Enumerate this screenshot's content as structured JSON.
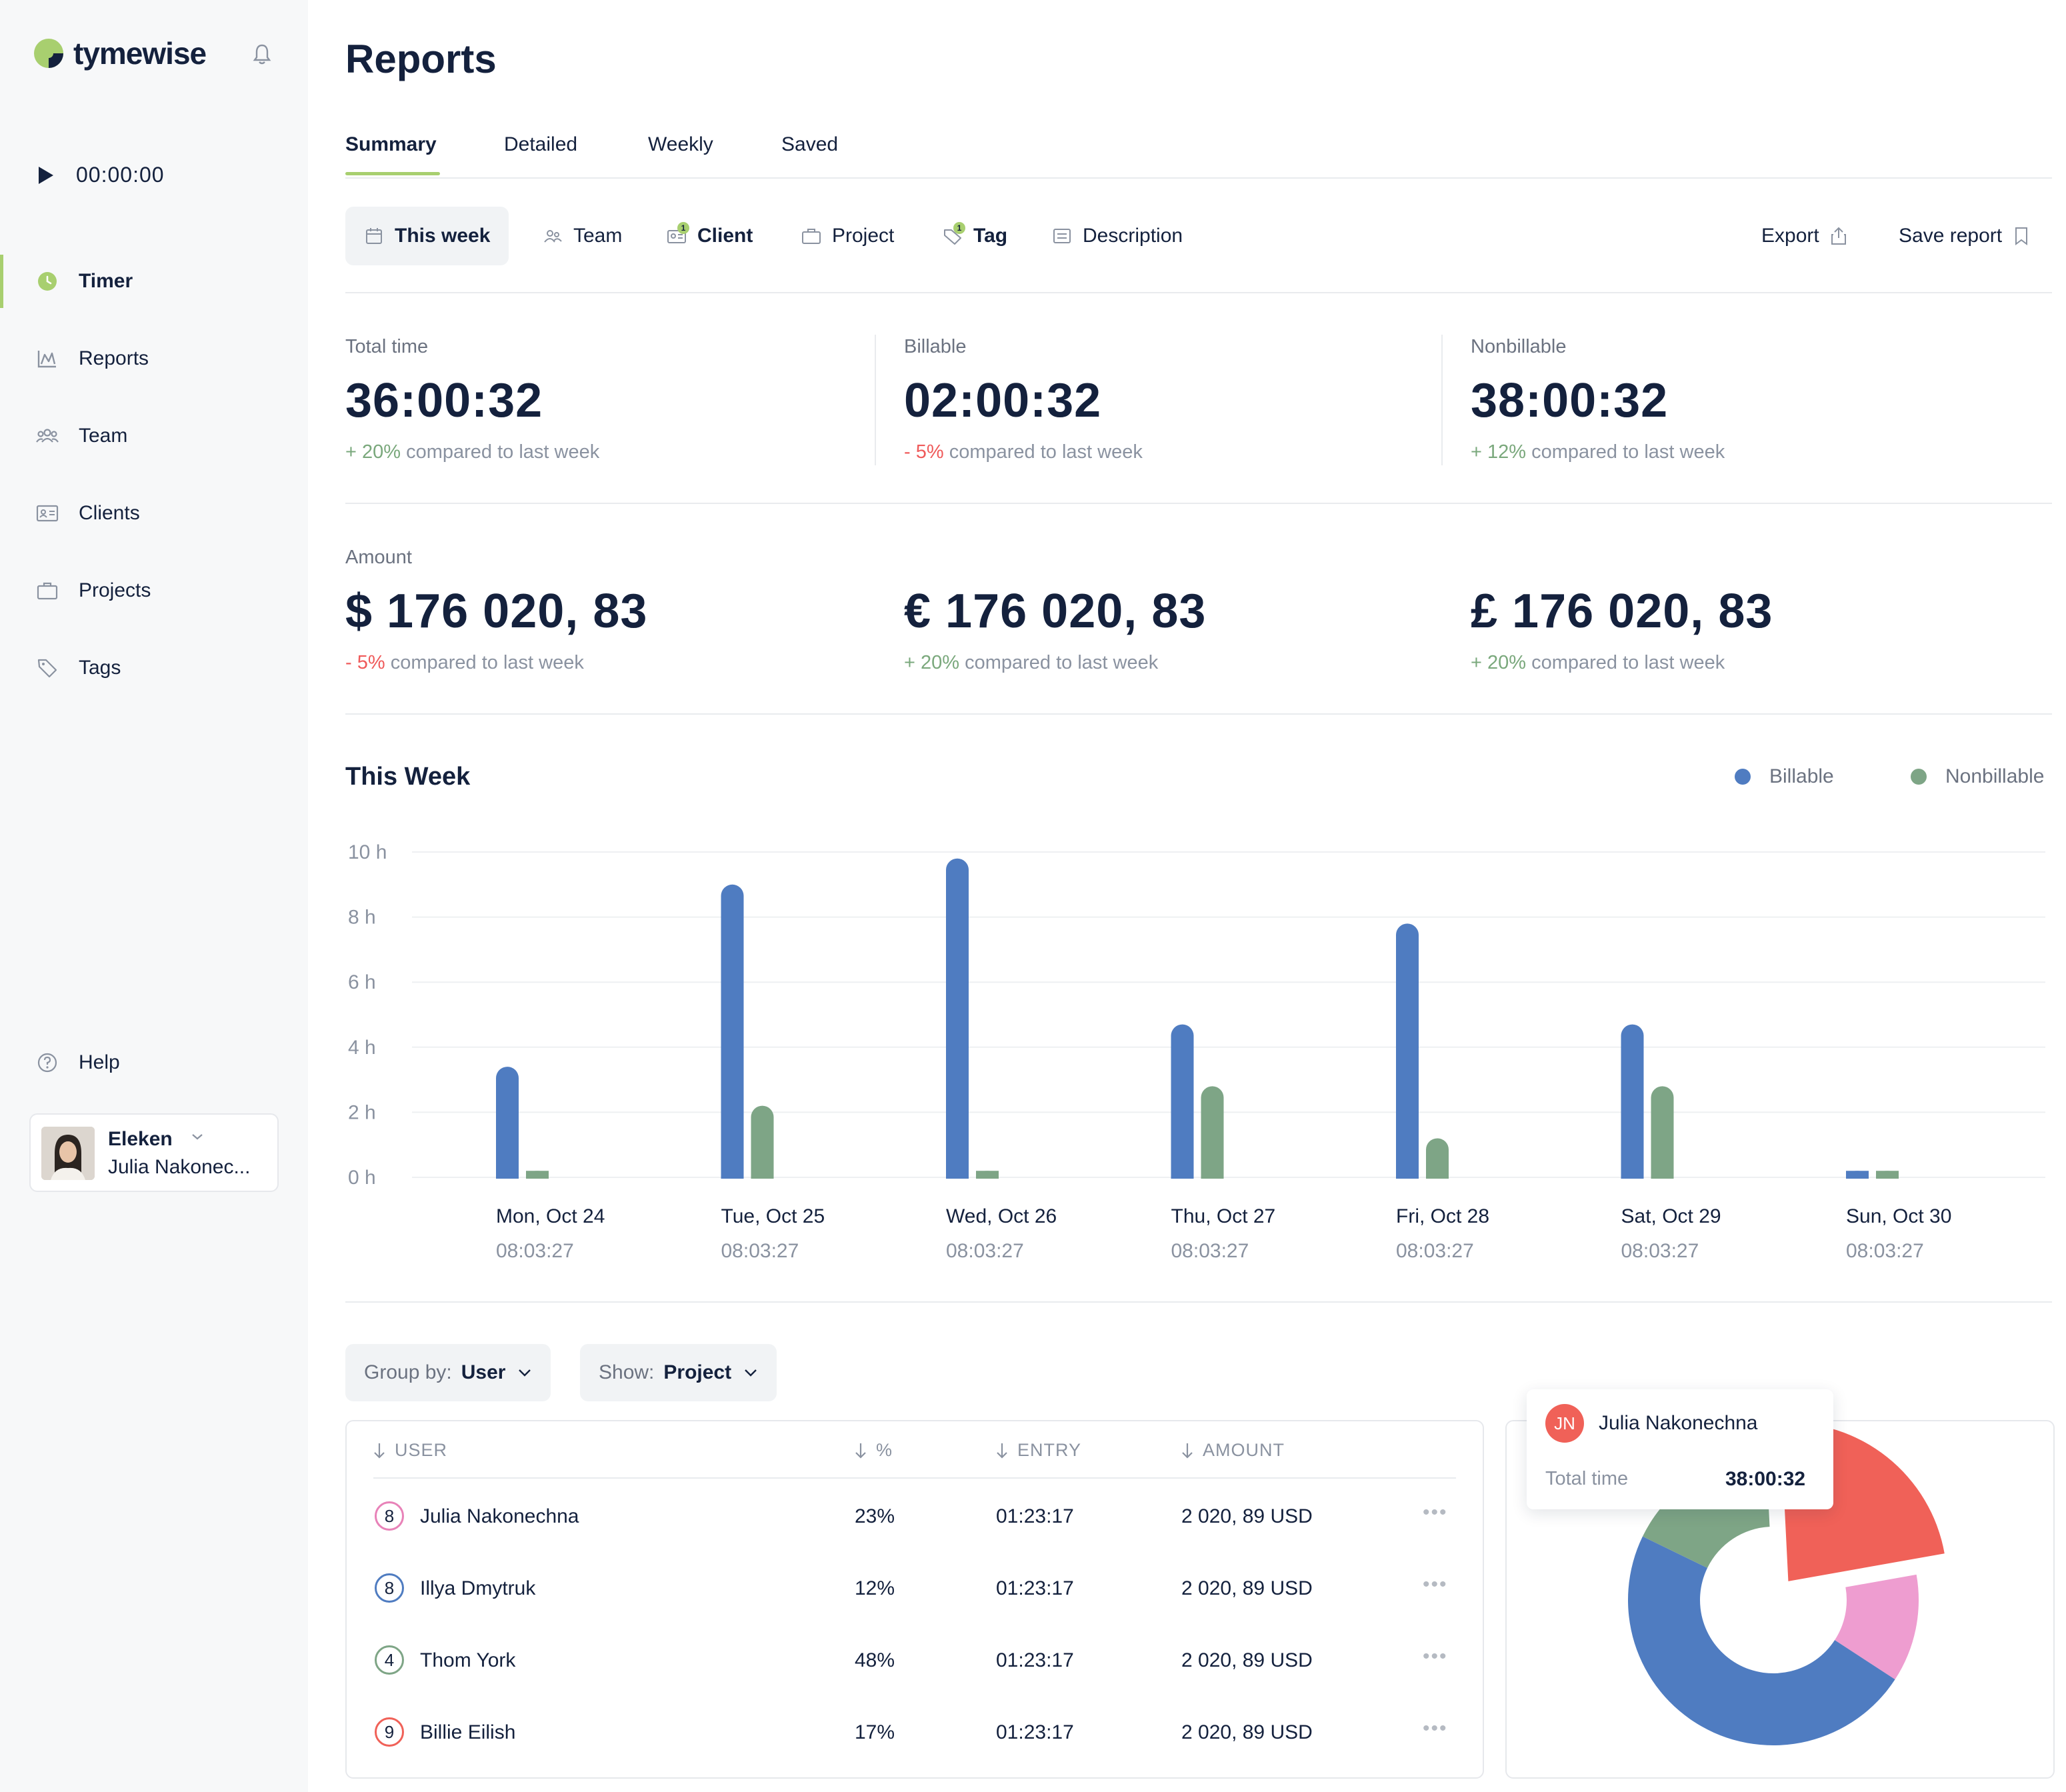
{
  "app": {
    "name": "tymewise"
  },
  "sidebar": {
    "timer": "00:00:00",
    "items": [
      {
        "label": "Timer",
        "icon": "clock-icon",
        "active": true
      },
      {
        "label": "Reports",
        "icon": "chart-icon"
      },
      {
        "label": "Team",
        "icon": "team-icon"
      },
      {
        "label": "Clients",
        "icon": "client-card-icon"
      },
      {
        "label": "Projects",
        "icon": "briefcase-icon"
      },
      {
        "label": "Tags",
        "icon": "tag-icon"
      }
    ],
    "help": "Help",
    "user": {
      "org": "Eleken",
      "name": "Julia Nakonec..."
    }
  },
  "page": {
    "title": "Reports"
  },
  "tabs": [
    "Summary",
    "Detailed",
    "Weekly",
    "Saved"
  ],
  "filters": {
    "this_week": "This week",
    "team": "Team",
    "client": "Client",
    "client_badge": "1",
    "project": "Project",
    "tag": "Tag",
    "tag_badge": "1",
    "description": "Description",
    "export": "Export",
    "save_report": "Save report"
  },
  "stats": {
    "total": {
      "label": "Total time",
      "value": "36:00:32",
      "delta": "+ 20%",
      "suffix": " compared to last week"
    },
    "billable": {
      "label": "Billable",
      "value": "02:00:32",
      "delta": "- 5%",
      "suffix": " compared to last week"
    },
    "nonbillable": {
      "label": "Nonbillable",
      "value": "38:00:32",
      "delta": "+ 12%",
      "suffix": " compared to last week"
    }
  },
  "amounts": {
    "label": "Amount",
    "usd": {
      "value": "$ 176 020, 83",
      "delta": "- 5%",
      "suffix": " compared to last week"
    },
    "eur": {
      "value": "€ 176 020, 83",
      "delta": "+ 20%",
      "suffix": " compared to last week"
    },
    "gbp": {
      "value": "£ 176 020, 83",
      "delta": "+ 20%",
      "suffix": " compared to last week"
    }
  },
  "colors": {
    "billable": "#4f7cc1",
    "nonbillable": "#7ea586",
    "accent": "#a8cf6f",
    "negative": "#ef5a5a",
    "positive": "#7aa87c"
  },
  "chart_data": {
    "type": "bar",
    "title": "This Week",
    "categories": [
      "Mon, Oct 24",
      "Tue, Oct 25",
      "Wed, Oct 26",
      "Thu, Oct 27",
      "Fri, Oct 28",
      "Sat, Oct 29",
      "Sun, Oct 30"
    ],
    "subtitles": [
      "08:03:27",
      "08:03:27",
      "08:03:27",
      "08:03:27",
      "08:03:27",
      "08:03:27",
      "08:03:27"
    ],
    "series": [
      {
        "name": "Billable",
        "color": "#4f7cc1",
        "values": [
          3.4,
          9.0,
          9.8,
          4.7,
          7.8,
          4.7,
          0.2
        ]
      },
      {
        "name": "Nonbillable",
        "color": "#7ea586",
        "values": [
          0.2,
          2.2,
          0.2,
          2.8,
          1.2,
          2.8,
          0.2
        ]
      }
    ],
    "yticks": [
      "0 h",
      "2 h",
      "4 h",
      "6 h",
      "8 h",
      "10 h"
    ],
    "ylim": [
      0,
      10
    ],
    "grid": true,
    "legend": "top-right"
  },
  "group_by": {
    "label": "Group by:",
    "value": "User"
  },
  "show": {
    "label": "Show:",
    "value": "Project"
  },
  "table": {
    "headers": {
      "user": "USER",
      "pct": "%",
      "entry": "ENTRY",
      "amount": "AMOUNT"
    },
    "rows": [
      {
        "num": "8",
        "color": "#e882b8",
        "user": "Julia Nakonechna",
        "pct": "23%",
        "entry": "01:23:17",
        "amount": "2 020, 89 USD"
      },
      {
        "num": "8",
        "color": "#4f7cc1",
        "user": "Illya Dmytruk",
        "pct": "12%",
        "entry": "01:23:17",
        "amount": "2 020, 89 USD"
      },
      {
        "num": "4",
        "color": "#7ea586",
        "user": "Thom York",
        "pct": "48%",
        "entry": "01:23:17",
        "amount": "2 020, 89 USD"
      },
      {
        "num": "9",
        "color": "#f06158",
        "user": "Billie Eilish",
        "pct": "17%",
        "entry": "01:23:17",
        "amount": "2 020, 89 USD"
      }
    ]
  },
  "tooltip": {
    "initials": "JN",
    "name": "Julia Nakonechna",
    "label": "Total time",
    "value": "38:00:32"
  },
  "donut": [
    {
      "name": "Julia Nakonechna",
      "pct": 23,
      "color": "#f06158"
    },
    {
      "name": "Illya Dmytruk",
      "pct": 12,
      "color": "#ee9dd0"
    },
    {
      "name": "Thom York",
      "pct": 48,
      "color": "#4f7cc1"
    },
    {
      "name": "Billie Eilish",
      "pct": 17,
      "color": "#7ea586"
    }
  ]
}
